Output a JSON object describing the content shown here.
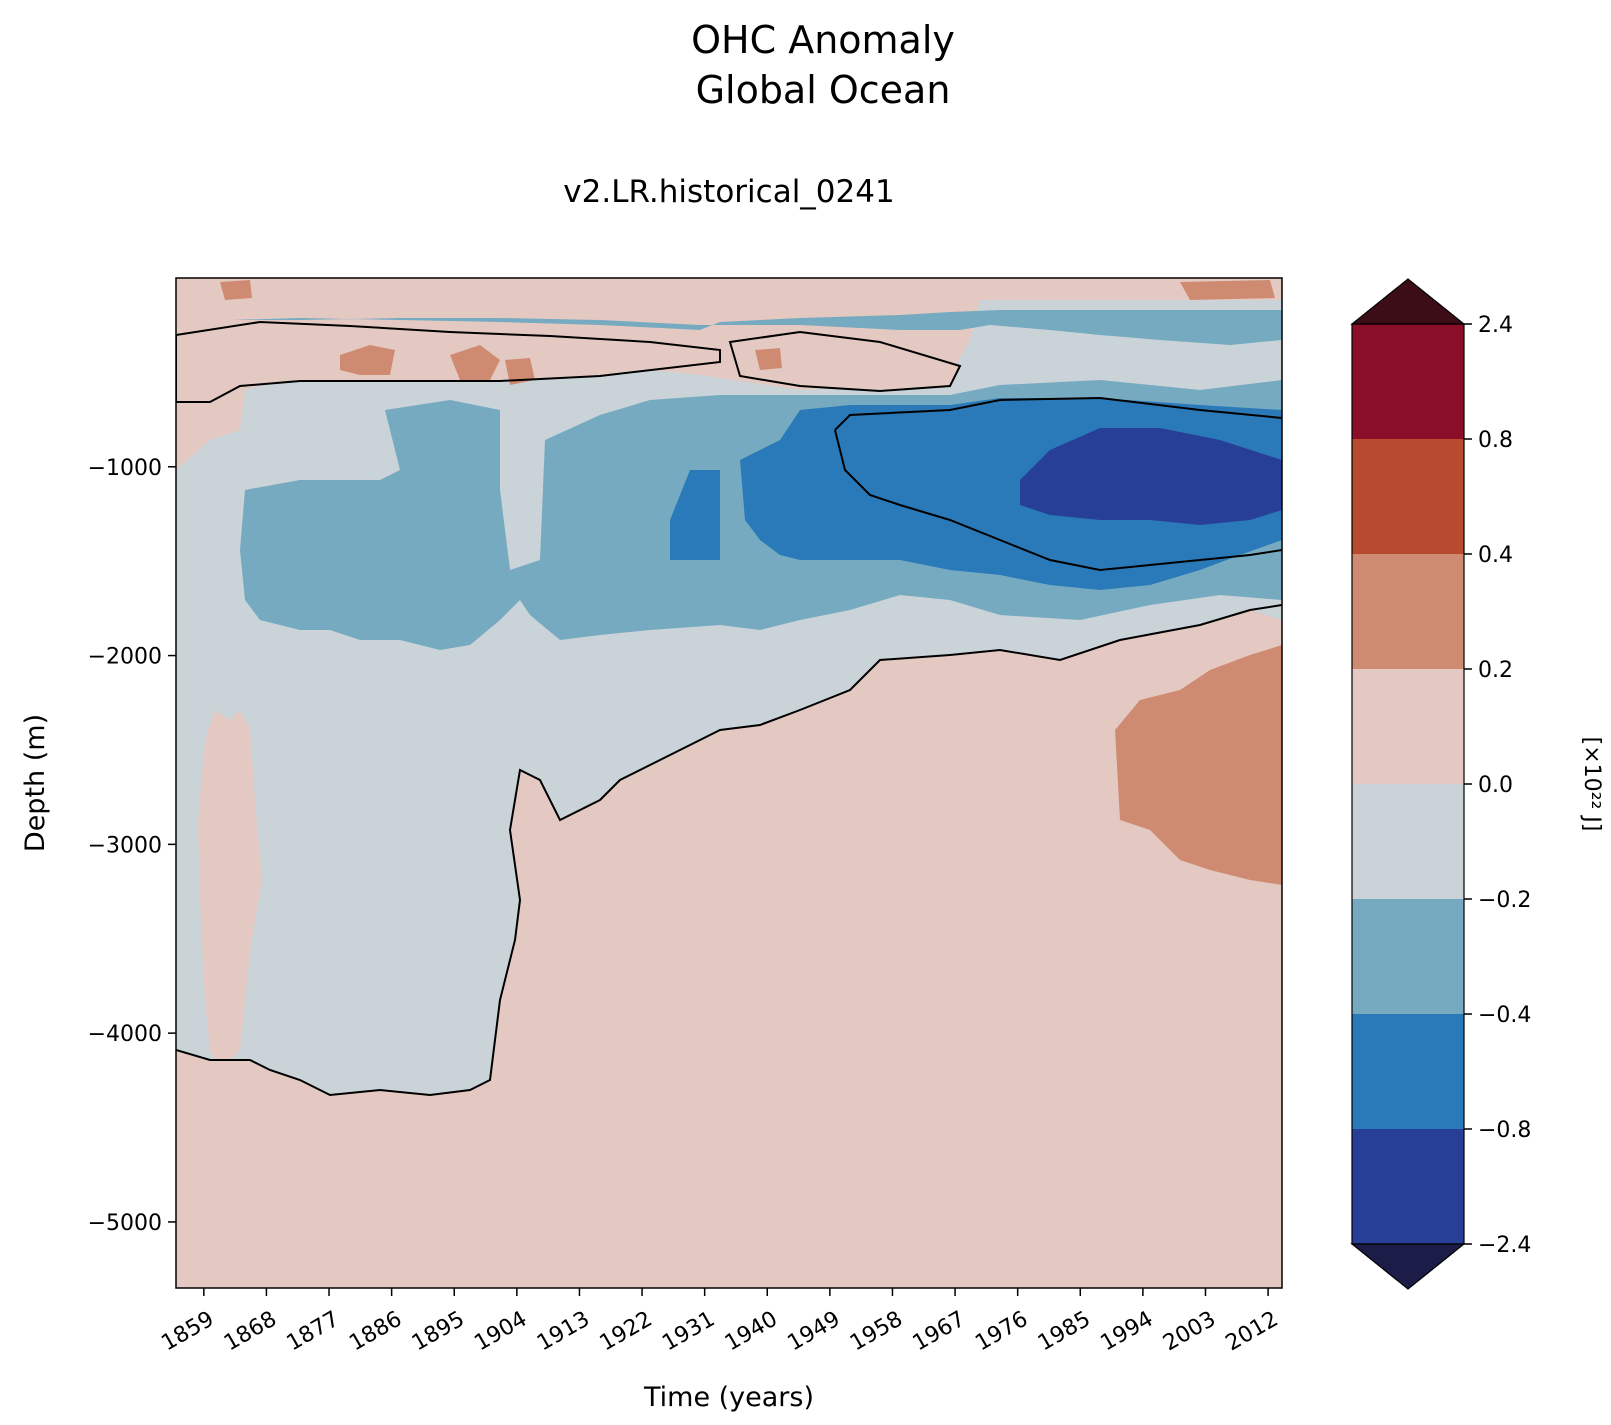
{
  "chart_data": {
    "type": "heatmap",
    "title_line1": "OHC Anomaly",
    "title_line2": "Global Ocean",
    "subtitle": "v2.LR.historical_0241",
    "xlabel": "Time (years)",
    "ylabel": "Depth (m)",
    "xlim": [
      1855,
      2014
    ],
    "ylim": [
      -5350,
      0
    ],
    "xticks": [
      1859,
      1868,
      1877,
      1886,
      1895,
      1904,
      1913,
      1922,
      1931,
      1940,
      1949,
      1958,
      1967,
      1976,
      1985,
      1994,
      2003,
      2012
    ],
    "yticks": [
      -1000,
      -2000,
      -3000,
      -4000,
      -5000
    ],
    "colorbar": {
      "levels": [
        "2.4",
        "0.8",
        "0.4",
        "0.2",
        "0.0",
        "−0.2",
        "−0.4",
        "−0.8",
        "−2.4"
      ],
      "colors": [
        "#8a0e27",
        "#b84a30",
        "#cf8b72",
        "#e4c9c2",
        "#c9d3d8",
        "#76aac0",
        "#2a7ab9",
        "#283f98"
      ],
      "over_color": "#3d0d17",
      "under_color": "#1b1c48",
      "label": "[×10²² J]"
    },
    "regions": [
      {
        "name": "deep-positive",
        "value_range": [
          0.0,
          0.2
        ],
        "color": "#e4c9c2"
      },
      {
        "name": "deep-warming-patch",
        "value_range": [
          0.2,
          0.4
        ],
        "color": "#cf8b72",
        "x_range": [
          1989,
          2014
        ],
        "y_range": [
          -3200,
          -1950
        ]
      },
      {
        "name": "mid-depth-cooling",
        "value_range": [
          -0.4,
          -0.2
        ],
        "color": "#76aac0"
      },
      {
        "name": "strong-cooling",
        "value_range": [
          -0.8,
          -0.4
        ],
        "color": "#2a7ab9"
      },
      {
        "name": "core-cooling",
        "value_range": [
          -2.4,
          -0.8
        ],
        "color": "#283f98",
        "x_range": [
          1976,
          2014
        ],
        "y_range": [
          -1250,
          -800
        ]
      },
      {
        "name": "near-surface-warm",
        "value_range": [
          0.0,
          0.2
        ],
        "color": "#e4c9c2",
        "y_range": [
          -600,
          -150
        ]
      }
    ]
  }
}
